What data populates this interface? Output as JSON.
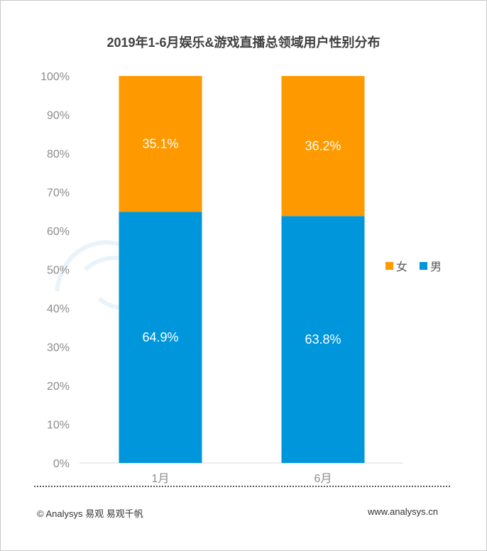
{
  "chart_data": {
    "type": "bar",
    "stacked": true,
    "title": "2019年1-6月娱乐&游戏直播总领域用户性别分布",
    "categories": [
      "1月",
      "6月"
    ],
    "series": [
      {
        "name": "男",
        "values": [
          64.9,
          63.8
        ],
        "labels": [
          "64.9%",
          "63.8%"
        ],
        "color": "#0096dc"
      },
      {
        "name": "女",
        "values": [
          35.1,
          36.2
        ],
        "labels": [
          "35.1%",
          "36.2%"
        ],
        "color": "#ff9900"
      }
    ],
    "ylim": [
      0,
      100
    ],
    "y_ticks": [
      "0%",
      "10%",
      "20%",
      "30%",
      "40%",
      "50%",
      "60%",
      "70%",
      "80%",
      "90%",
      "100%"
    ],
    "legend": {
      "position": "right",
      "order": [
        "女",
        "男"
      ]
    },
    "grid": false
  },
  "footer": {
    "copyright": "© Analysys 易观 易观千帆",
    "website": "www.analysys.cn"
  }
}
